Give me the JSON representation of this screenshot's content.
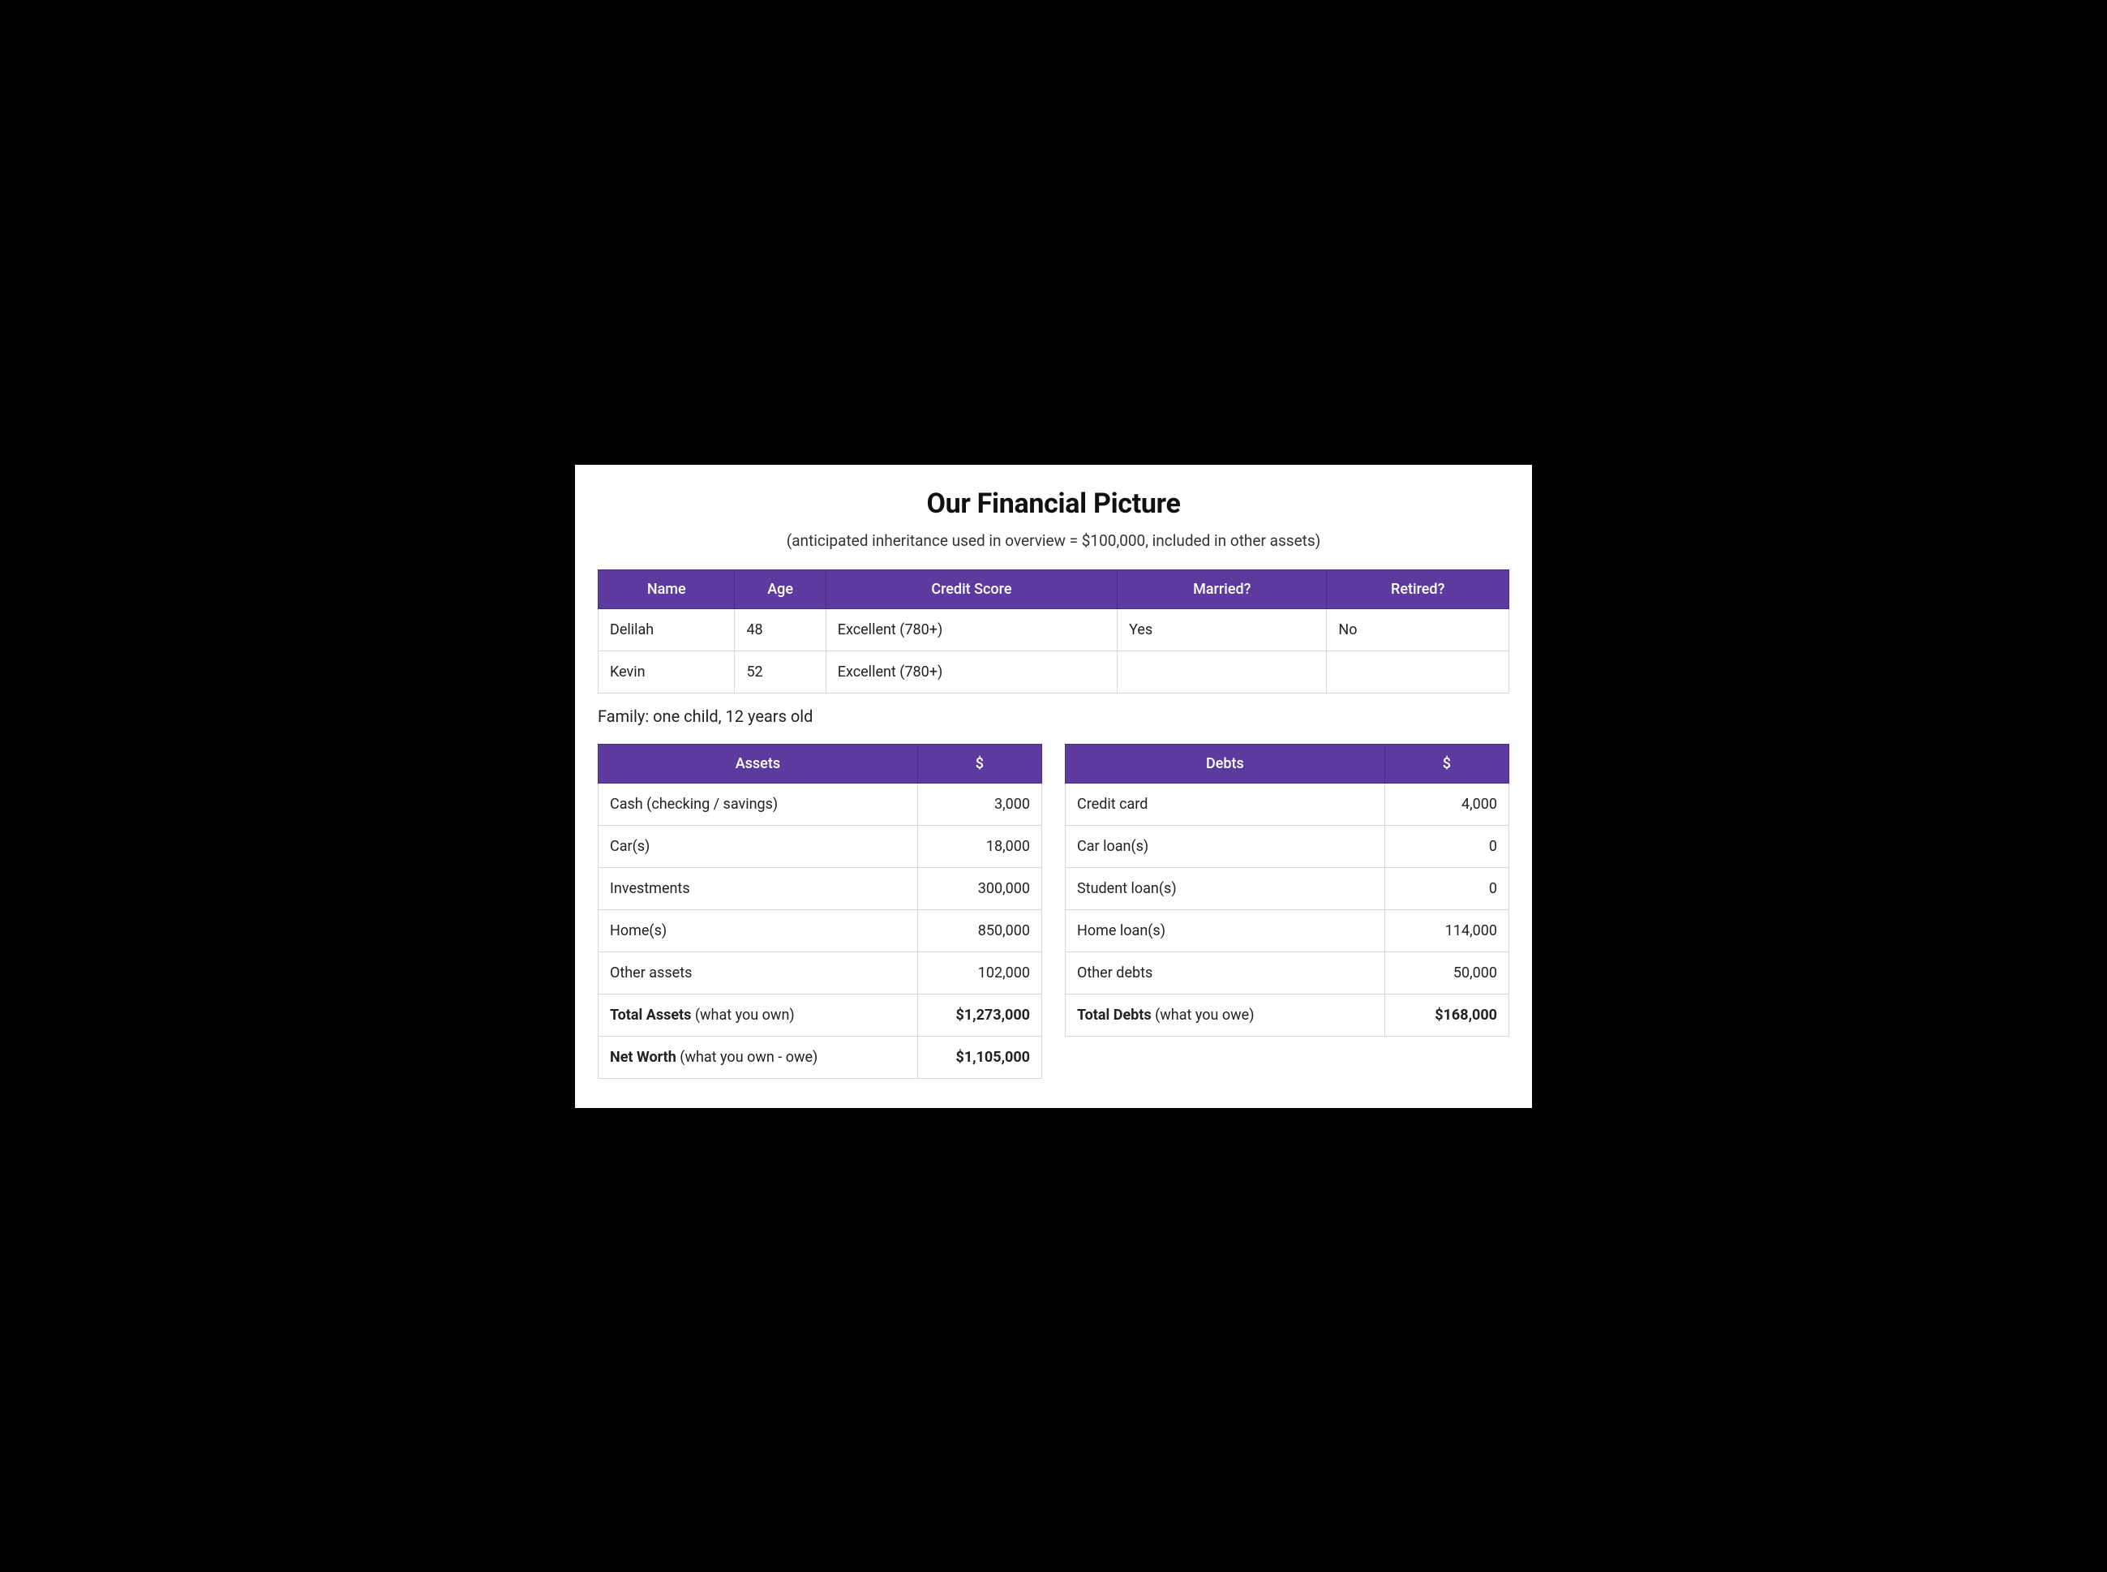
{
  "colors": {
    "header_bg": "#5c3a9e",
    "header_text": "#ffffff",
    "page_bg": "#ffffff",
    "outer_bg": "#000000",
    "border": "#d8d8d8",
    "text": "#222222"
  },
  "title": "Our Financial Picture",
  "subtitle": "(anticipated inheritance used in overview = $100,000, included in other assets)",
  "people_table": {
    "columns": [
      "Name",
      "Age",
      "Credit Score",
      "Married?",
      "Retired?"
    ],
    "rows": [
      [
        "Delilah",
        "48",
        "Excellent (780+)",
        "Yes",
        "No"
      ],
      [
        "Kevin",
        "52",
        "Excellent (780+)",
        "",
        ""
      ]
    ]
  },
  "family_note": "Family: one child, 12 years old",
  "assets_table": {
    "columns": [
      "Assets",
      "$"
    ],
    "rows": [
      [
        "Cash (checking / savings)",
        "3,000"
      ],
      [
        "Car(s)",
        "18,000"
      ],
      [
        "Investments",
        "300,000"
      ],
      [
        "Home(s)",
        "850,000"
      ],
      [
        "Other assets",
        "102,000"
      ]
    ],
    "totals": [
      {
        "label_bold": "Total Assets",
        "label_rest": " (what you own)",
        "value": "$1,273,000"
      },
      {
        "label_bold": "Net Worth",
        "label_rest": " (what you own - owe)",
        "value": "$1,105,000"
      }
    ]
  },
  "debts_table": {
    "columns": [
      "Debts",
      "$"
    ],
    "rows": [
      [
        "Credit card",
        "4,000"
      ],
      [
        "Car loan(s)",
        "0"
      ],
      [
        "Student loan(s)",
        "0"
      ],
      [
        "Home loan(s)",
        "114,000"
      ],
      [
        "Other debts",
        "50,000"
      ]
    ],
    "totals": [
      {
        "label_bold": "Total Debts",
        "label_rest": " (what you owe)",
        "value": "$168,000"
      }
    ]
  }
}
